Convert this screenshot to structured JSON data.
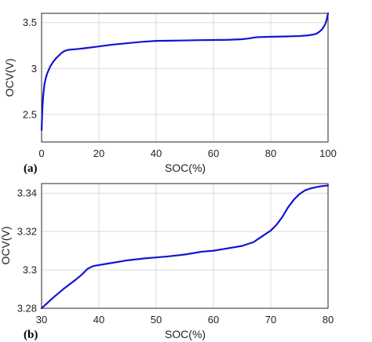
{
  "chart_data": [
    {
      "type": "line",
      "panel_label": "(a)",
      "xlabel": "SOC(%)",
      "ylabel": "OCV(V)",
      "xlim": [
        0,
        100
      ],
      "ylim": [
        2.2,
        3.6
      ],
      "xticks": [
        0,
        20,
        40,
        60,
        80,
        100
      ],
      "yticks": [
        2.5,
        3,
        3.5
      ],
      "xtick_labels": [
        "0",
        "20",
        "40",
        "60",
        "80",
        "100"
      ],
      "ytick_labels": [
        "2.5",
        "3",
        "3.5"
      ],
      "grid": true,
      "color": "#1414d2",
      "series": [
        {
          "x": [
            0,
            0.3,
            0.6,
            1,
            1.5,
            2,
            3,
            4,
            5,
            6,
            7,
            8,
            9,
            10,
            12,
            15,
            20,
            25,
            30,
            35,
            40,
            45,
            50,
            55,
            60,
            65,
            70,
            72,
            75,
            80,
            85,
            90,
            93,
            95,
            96,
            97,
            98,
            99,
            99.5,
            100
          ],
          "y": [
            2.33,
            2.58,
            2.72,
            2.83,
            2.9,
            2.95,
            3.02,
            3.07,
            3.11,
            3.14,
            3.17,
            3.19,
            3.2,
            3.205,
            3.21,
            3.22,
            3.24,
            3.26,
            3.275,
            3.29,
            3.3,
            3.302,
            3.305,
            3.308,
            3.31,
            3.312,
            3.318,
            3.325,
            3.34,
            3.345,
            3.348,
            3.353,
            3.36,
            3.37,
            3.38,
            3.4,
            3.43,
            3.48,
            3.53,
            3.6
          ]
        }
      ]
    },
    {
      "type": "line",
      "panel_label": "(b)",
      "xlabel": "SOC(%)",
      "ylabel": "OCV(V)",
      "xlim": [
        30,
        80
      ],
      "ylim": [
        3.28,
        3.345
      ],
      "xticks": [
        30,
        40,
        50,
        60,
        70,
        80
      ],
      "yticks": [
        3.28,
        3.3,
        3.32,
        3.34
      ],
      "xtick_labels": [
        "30",
        "40",
        "50",
        "60",
        "70",
        "80"
      ],
      "ytick_labels": [
        "3.28",
        "3.3",
        "3.32",
        "3.34"
      ],
      "grid": true,
      "color": "#1414d2",
      "series": [
        {
          "x": [
            30,
            32,
            34,
            36,
            37,
            38,
            39,
            40,
            42,
            45,
            48,
            50,
            52,
            55,
            58,
            60,
            62,
            65,
            67,
            68,
            69,
            70,
            71,
            72,
            73,
            74,
            75,
            76,
            77,
            78,
            79,
            80
          ],
          "y": [
            3.28,
            3.2855,
            3.2905,
            3.295,
            3.2975,
            3.3005,
            3.302,
            3.3025,
            3.3035,
            3.305,
            3.306,
            3.3065,
            3.307,
            3.308,
            3.3095,
            3.31,
            3.311,
            3.3125,
            3.3145,
            3.3165,
            3.3185,
            3.3205,
            3.3235,
            3.3275,
            3.3325,
            3.3365,
            3.3395,
            3.3415,
            3.3425,
            3.3432,
            3.3437,
            3.344
          ]
        }
      ]
    }
  ]
}
